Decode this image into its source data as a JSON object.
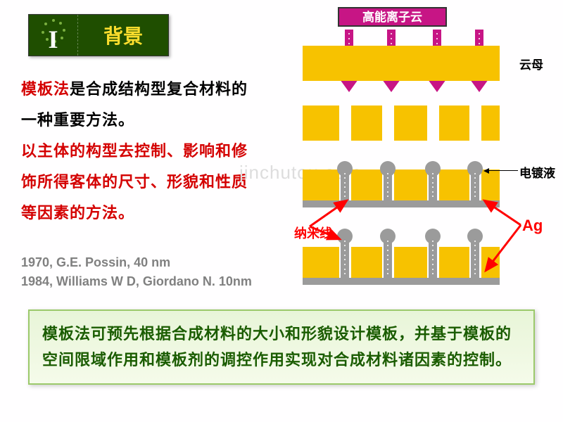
{
  "header": {
    "number": "I",
    "title": "背景",
    "bg_color": "#1f4e00",
    "title_color": "#fbdd2d",
    "dot_color": "#7aaf3f"
  },
  "body_text": {
    "line1_red": "模板法",
    "line1_rest": "是合成结构型复合材料的一种重要方法。",
    "line2": "以主体的构型去控制、影响和修饰所得客体的尺寸、形貌和性质等因素的方法。",
    "color_red": "#d40000"
  },
  "citations": {
    "c1": "1970, G.E. Possin, 40 nm",
    "c2": "1984, Williams W D, Giordano N. 10nm"
  },
  "summary": {
    "text": "模板法可预先根据合成材料的大小和形貌设计模板，并基于模板的空间限域作用和模板剂的调控作用实现对合成材料诸因素的控制。"
  },
  "diagram": {
    "ion_cloud_label": "高能离子云",
    "ion_cloud_bg": "#c71585",
    "mica_color": "#f7c200",
    "mica_label": "云母",
    "electroplate_label": "电镀液",
    "gray_color": "#9b9b9b",
    "nanowire_label": "纳米线",
    "ag_label": "Ag",
    "beam_positions": [
      60,
      120,
      185,
      245
    ],
    "segments": [
      52,
      17,
      44,
      17,
      47,
      17,
      43,
      17,
      26
    ],
    "wire_positions": [
      52,
      113,
      177,
      237
    ]
  },
  "watermark": "jinchutou.com"
}
